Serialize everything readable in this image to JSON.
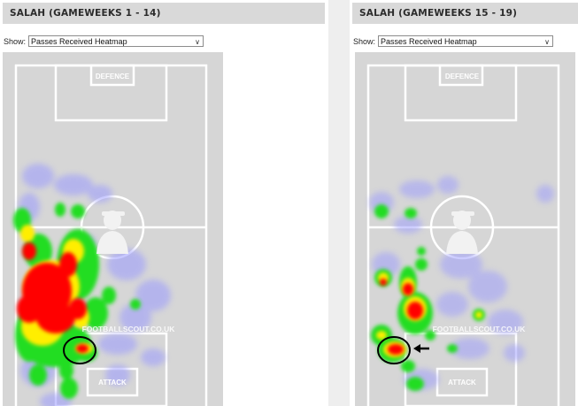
{
  "panels": [
    {
      "title": "SALAH (GAMEWEEKS 1 - 14)",
      "show_label": "Show:",
      "select_value": "Passes Received Heatmap",
      "pitch_labels": {
        "top": "DEFENCE",
        "bottom": "ATTACK"
      },
      "watermark": "FOOTBALLSCOUT.CO.UK",
      "annotation": "circle"
    },
    {
      "title": "SALAH (GAMEWEEKS 15 - 19)",
      "show_label": "Show:",
      "select_value": "Passes Received Heatmap",
      "pitch_labels": {
        "top": "DEFENCE",
        "bottom": "ATTACK"
      },
      "watermark": "FOOTBALLSCOUT.CO.UK",
      "annotation": "circle-with-arrow"
    }
  ],
  "icons": {
    "select_arrow": "chevron-down-icon",
    "center_logo": "player-silhouette-icon",
    "annotation_arrow": "arrow-left-icon"
  },
  "colors": {
    "pitch": "#d6d6d6",
    "lines": "#ffffff",
    "heat_low": "#9a9aff",
    "heat_mid": "#22dd22",
    "heat_high": "#ffee00",
    "heat_peak": "#ff0000"
  }
}
